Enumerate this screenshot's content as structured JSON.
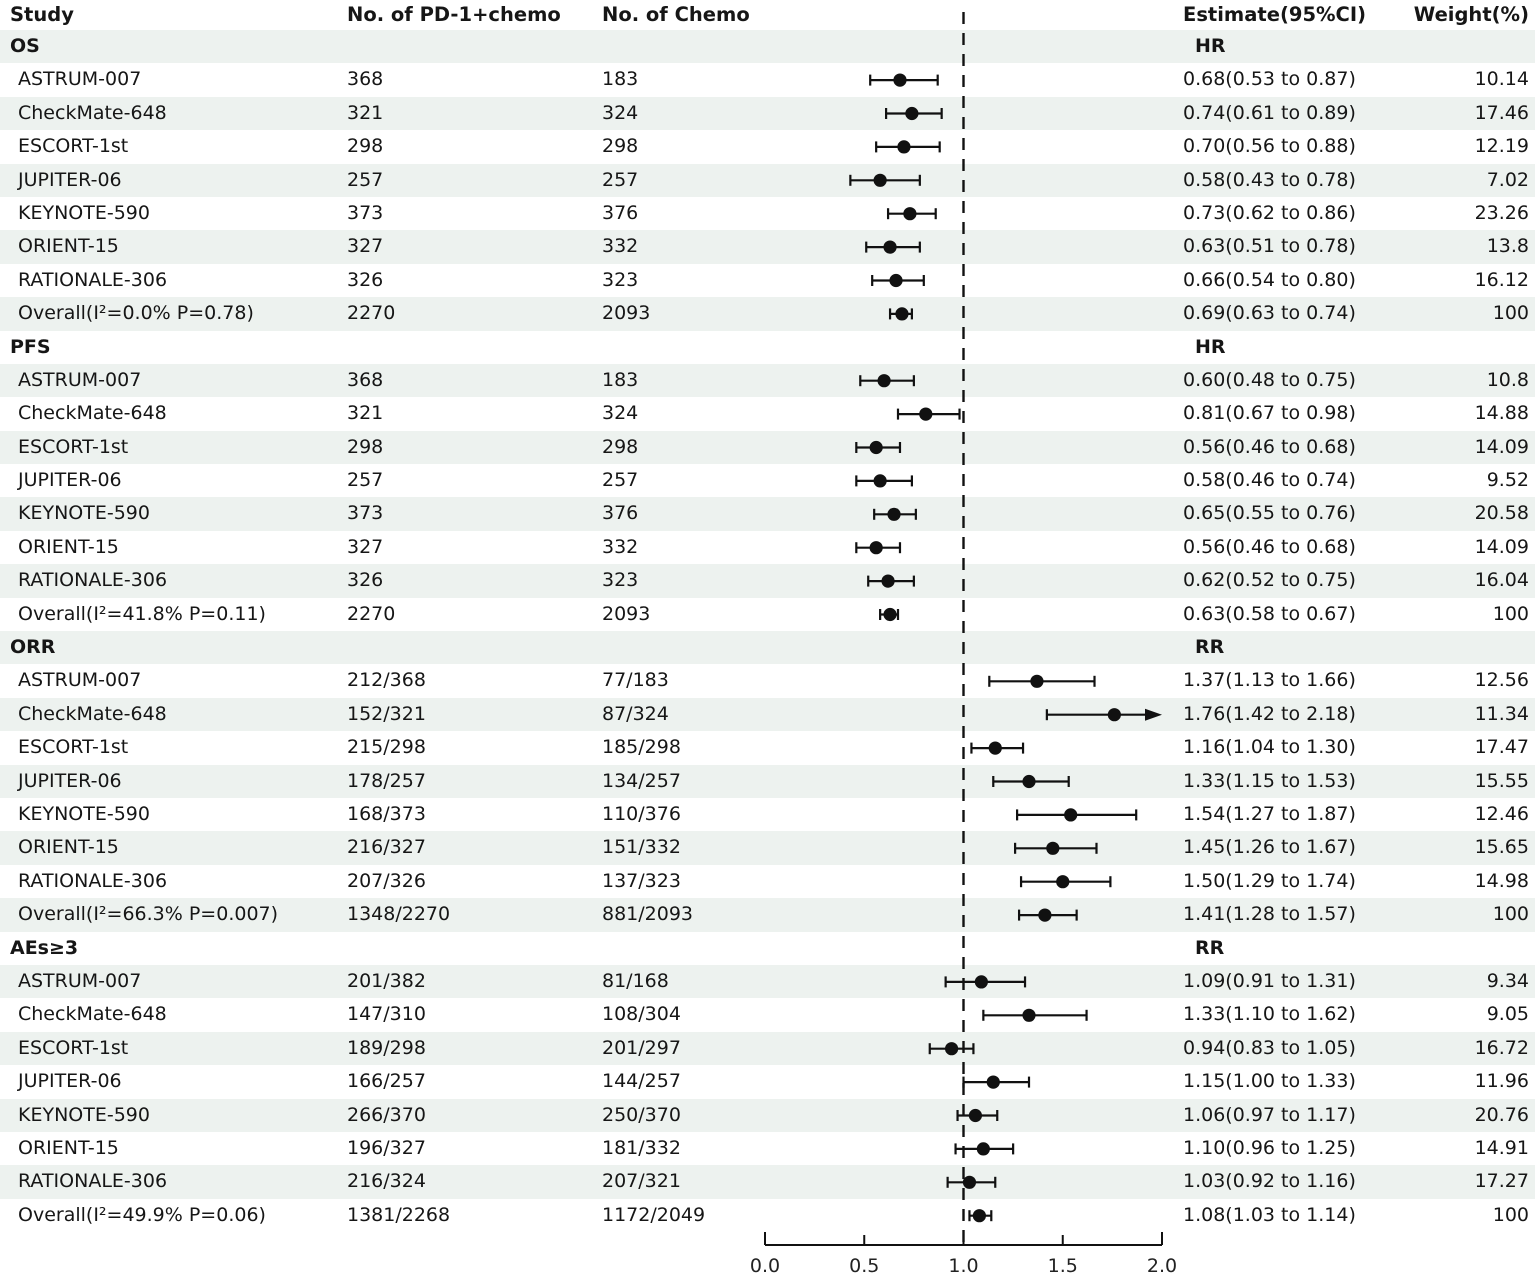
{
  "colors": {
    "stripe": "#edf2ef",
    "ink": "#161616",
    "marker": "#111111"
  },
  "chart_data": {
    "type": "forest",
    "columns": [
      "Study",
      "No. of PD-1+chemo",
      "No. of Chemo",
      "Estimate(95%CI)",
      "Weight(%)"
    ],
    "xlim": [
      0.0,
      2.0
    ],
    "x_ticks": [
      "0.0",
      "0.5",
      "1.0",
      "1.5",
      "2.0"
    ],
    "x_tick_values": [
      0.0,
      0.5,
      1.0,
      1.5,
      2.0
    ],
    "reference_line": 1.0,
    "grid": false,
    "sections": [
      {
        "name": "OS",
        "effect_label": "HR",
        "rows": [
          {
            "study": "ASTRUM-007",
            "pd1": "368",
            "chemo": "183",
            "est": 0.68,
            "lo": 0.53,
            "hi": 0.87,
            "estimate": "0.68(0.53 to 0.87)",
            "weight": "10.14"
          },
          {
            "study": "CheckMate-648",
            "pd1": "321",
            "chemo": "324",
            "est": 0.74,
            "lo": 0.61,
            "hi": 0.89,
            "estimate": "0.74(0.61 to 0.89)",
            "weight": "17.46"
          },
          {
            "study": "ESCORT-1st",
            "pd1": "298",
            "chemo": "298",
            "est": 0.7,
            "lo": 0.56,
            "hi": 0.88,
            "estimate": "0.70(0.56 to 0.88)",
            "weight": "12.19"
          },
          {
            "study": "JUPITER-06",
            "pd1": "257",
            "chemo": "257",
            "est": 0.58,
            "lo": 0.43,
            "hi": 0.78,
            "estimate": "0.58(0.43 to 0.78)",
            "weight": "7.02"
          },
          {
            "study": "KEYNOTE-590",
            "pd1": "373",
            "chemo": "376",
            "est": 0.73,
            "lo": 0.62,
            "hi": 0.86,
            "estimate": "0.73(0.62 to 0.86)",
            "weight": "23.26"
          },
          {
            "study": "ORIENT-15",
            "pd1": "327",
            "chemo": "332",
            "est": 0.63,
            "lo": 0.51,
            "hi": 0.78,
            "estimate": "0.63(0.51 to 0.78)",
            "weight": "13.8"
          },
          {
            "study": "RATIONALE-306",
            "pd1": "326",
            "chemo": "323",
            "est": 0.66,
            "lo": 0.54,
            "hi": 0.8,
            "estimate": "0.66(0.54 to 0.80)",
            "weight": "16.12"
          },
          {
            "study": "Overall(I²=0.0% P=0.78)",
            "pd1": "2270",
            "chemo": "2093",
            "est": 0.69,
            "lo": 0.63,
            "hi": 0.74,
            "estimate": "0.69(0.63 to 0.74)",
            "weight": "100",
            "overall": true
          }
        ]
      },
      {
        "name": "PFS",
        "effect_label": "HR",
        "rows": [
          {
            "study": "ASTRUM-007",
            "pd1": "368",
            "chemo": "183",
            "est": 0.6,
            "lo": 0.48,
            "hi": 0.75,
            "estimate": "0.60(0.48 to 0.75)",
            "weight": "10.8"
          },
          {
            "study": "CheckMate-648",
            "pd1": "321",
            "chemo": "324",
            "est": 0.81,
            "lo": 0.67,
            "hi": 0.98,
            "estimate": "0.81(0.67 to 0.98)",
            "weight": "14.88"
          },
          {
            "study": "ESCORT-1st",
            "pd1": "298",
            "chemo": "298",
            "est": 0.56,
            "lo": 0.46,
            "hi": 0.68,
            "estimate": "0.56(0.46 to 0.68)",
            "weight": "14.09"
          },
          {
            "study": "JUPITER-06",
            "pd1": "257",
            "chemo": "257",
            "est": 0.58,
            "lo": 0.46,
            "hi": 0.74,
            "estimate": "0.58(0.46 to 0.74)",
            "weight": "9.52"
          },
          {
            "study": "KEYNOTE-590",
            "pd1": "373",
            "chemo": "376",
            "est": 0.65,
            "lo": 0.55,
            "hi": 0.76,
            "estimate": "0.65(0.55 to 0.76)",
            "weight": "20.58"
          },
          {
            "study": "ORIENT-15",
            "pd1": "327",
            "chemo": "332",
            "est": 0.56,
            "lo": 0.46,
            "hi": 0.68,
            "estimate": "0.56(0.46 to 0.68)",
            "weight": "14.09"
          },
          {
            "study": "RATIONALE-306",
            "pd1": "326",
            "chemo": "323",
            "est": 0.62,
            "lo": 0.52,
            "hi": 0.75,
            "estimate": "0.62(0.52 to 0.75)",
            "weight": "16.04"
          },
          {
            "study": "Overall(I²=41.8% P=0.11)",
            "pd1": "2270",
            "chemo": "2093",
            "est": 0.63,
            "lo": 0.58,
            "hi": 0.67,
            "estimate": "0.63(0.58 to 0.67)",
            "weight": "100",
            "overall": true
          }
        ]
      },
      {
        "name": "ORR",
        "effect_label": "RR",
        "rows": [
          {
            "study": "ASTRUM-007",
            "pd1": "212/368",
            "chemo": "77/183",
            "est": 1.37,
            "lo": 1.13,
            "hi": 1.66,
            "estimate": "1.37(1.13 to 1.66)",
            "weight": "12.56"
          },
          {
            "study": "CheckMate-648",
            "pd1": "152/321",
            "chemo": "87/324",
            "est": 1.76,
            "lo": 1.42,
            "hi": 2.18,
            "estimate": "1.76(1.42 to 2.18)",
            "weight": "11.34"
          },
          {
            "study": "ESCORT-1st",
            "pd1": "215/298",
            "chemo": "185/298",
            "est": 1.16,
            "lo": 1.04,
            "hi": 1.3,
            "estimate": "1.16(1.04 to 1.30)",
            "weight": "17.47"
          },
          {
            "study": "JUPITER-06",
            "pd1": "178/257",
            "chemo": "134/257",
            "est": 1.33,
            "lo": 1.15,
            "hi": 1.53,
            "estimate": "1.33(1.15 to 1.53)",
            "weight": "15.55"
          },
          {
            "study": "KEYNOTE-590",
            "pd1": "168/373",
            "chemo": "110/376",
            "est": 1.54,
            "lo": 1.27,
            "hi": 1.87,
            "estimate": "1.54(1.27 to 1.87)",
            "weight": "12.46"
          },
          {
            "study": "ORIENT-15",
            "pd1": "216/327",
            "chemo": "151/332",
            "est": 1.45,
            "lo": 1.26,
            "hi": 1.67,
            "estimate": "1.45(1.26 to 1.67)",
            "weight": "15.65"
          },
          {
            "study": "RATIONALE-306",
            "pd1": "207/326",
            "chemo": "137/323",
            "est": 1.5,
            "lo": 1.29,
            "hi": 1.74,
            "estimate": "1.50(1.29 to 1.74)",
            "weight": "14.98"
          },
          {
            "study": "Overall(I²=66.3% P=0.007)",
            "pd1": "1348/2270",
            "chemo": "881/2093",
            "est": 1.41,
            "lo": 1.28,
            "hi": 1.57,
            "estimate": "1.41(1.28 to 1.57)",
            "weight": "100",
            "overall": true
          }
        ]
      },
      {
        "name": "AEs≥3",
        "effect_label": "RR",
        "rows": [
          {
            "study": "ASTRUM-007",
            "pd1": "201/382",
            "chemo": "81/168",
            "est": 1.09,
            "lo": 0.91,
            "hi": 1.31,
            "estimate": "1.09(0.91 to 1.31)",
            "weight": "9.34"
          },
          {
            "study": "CheckMate-648",
            "pd1": "147/310",
            "chemo": "108/304",
            "est": 1.33,
            "lo": 1.1,
            "hi": 1.62,
            "estimate": "1.33(1.10 to 1.62)",
            "weight": "9.05"
          },
          {
            "study": "ESCORT-1st",
            "pd1": "189/298",
            "chemo": "201/297",
            "est": 0.94,
            "lo": 0.83,
            "hi": 1.05,
            "estimate": "0.94(0.83 to 1.05)",
            "weight": "16.72"
          },
          {
            "study": "JUPITER-06",
            "pd1": "166/257",
            "chemo": "144/257",
            "est": 1.15,
            "lo": 1.0,
            "hi": 1.33,
            "estimate": "1.15(1.00 to 1.33)",
            "weight": "11.96"
          },
          {
            "study": "KEYNOTE-590",
            "pd1": "266/370",
            "chemo": "250/370",
            "est": 1.06,
            "lo": 0.97,
            "hi": 1.17,
            "estimate": "1.06(0.97 to 1.17)",
            "weight": "20.76"
          },
          {
            "study": "ORIENT-15",
            "pd1": "196/327",
            "chemo": "181/332",
            "est": 1.1,
            "lo": 0.96,
            "hi": 1.25,
            "estimate": "1.10(0.96 to 1.25)",
            "weight": "14.91"
          },
          {
            "study": "RATIONALE-306",
            "pd1": "216/324",
            "chemo": "207/321",
            "est": 1.03,
            "lo": 0.92,
            "hi": 1.16,
            "estimate": "1.03(0.92 to 1.16)",
            "weight": "17.27"
          },
          {
            "study": "Overall(I²=49.9% P=0.06)",
            "pd1": "1381/2268",
            "chemo": "1172/2049",
            "est": 1.08,
            "lo": 1.03,
            "hi": 1.14,
            "estimate": "1.08(1.03 to 1.14)",
            "weight": "100",
            "overall": true
          }
        ]
      }
    ]
  }
}
